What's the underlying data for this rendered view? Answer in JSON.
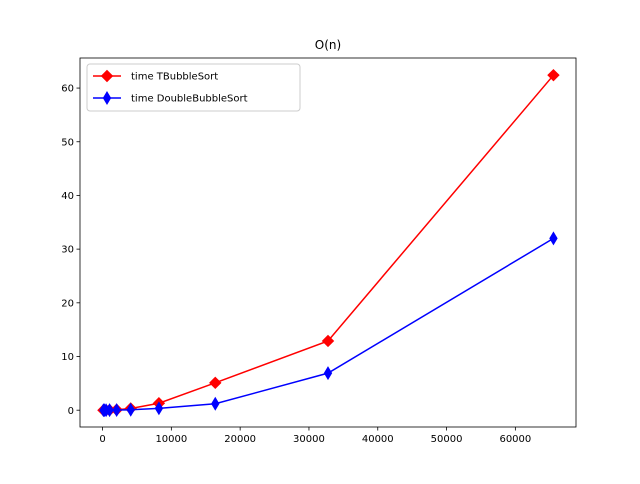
{
  "chart_data": {
    "type": "line",
    "title": "O(n)",
    "xlabel": "",
    "ylabel": "",
    "xlim": [
      -3277,
      68813
    ],
    "ylim": [
      -3.13,
      65.6
    ],
    "xticks": [
      0,
      10000,
      20000,
      30000,
      40000,
      50000,
      60000
    ],
    "yticks": [
      0,
      10,
      20,
      30,
      40,
      50,
      60
    ],
    "grid": false,
    "legend_position": "upper left",
    "series": [
      {
        "name": "time TBubbleSort",
        "color": "#ff0000",
        "marker": "diamond",
        "x": [
          128,
          256,
          512,
          1024,
          2048,
          4096,
          8192,
          16384,
          32768,
          65536
        ],
        "y": [
          0.0,
          0.0,
          0.0,
          0.02,
          0.08,
          0.32,
          1.3,
          5.1,
          12.9,
          62.4
        ]
      },
      {
        "name": "time DoubleBubbleSort",
        "color": "#0000ff",
        "marker": "thin_diamond",
        "x": [
          128,
          256,
          512,
          1024,
          2048,
          4096,
          8192,
          16384,
          32768,
          65536
        ],
        "y": [
          0.0,
          0.0,
          0.0,
          0.01,
          0.03,
          0.08,
          0.35,
          1.2,
          6.9,
          32.0
        ]
      }
    ]
  }
}
